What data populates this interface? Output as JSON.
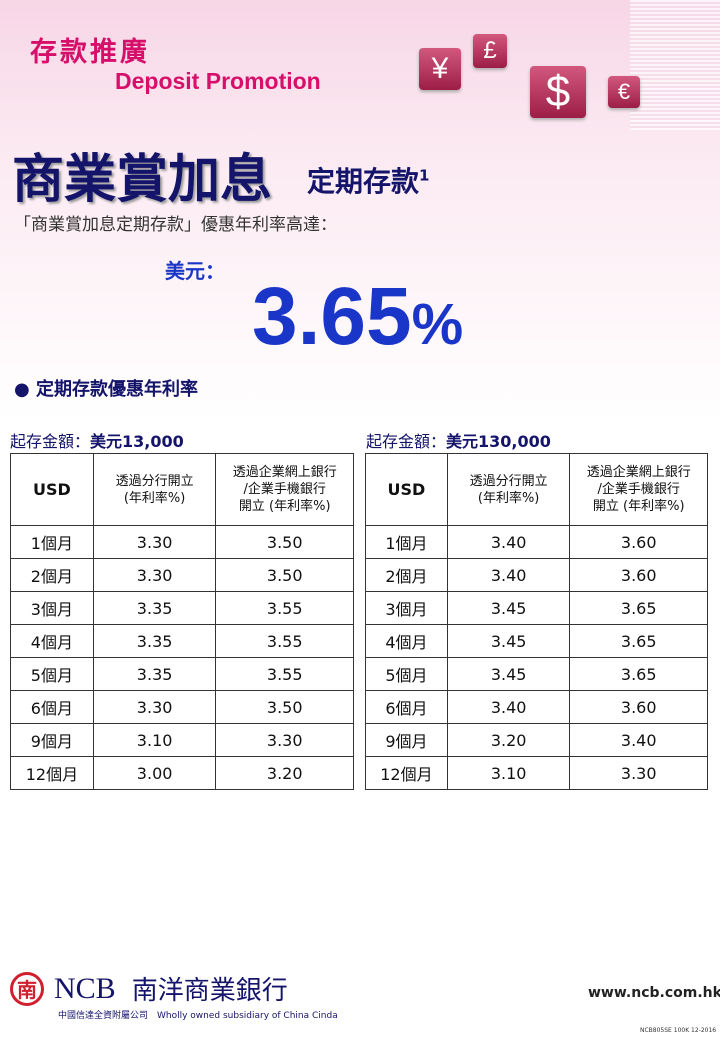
{
  "header": {
    "title_zh": "存款推廣",
    "title_en": "Deposit Promotion",
    "currency_icons": [
      "¥",
      "£",
      "$",
      "€"
    ]
  },
  "product": {
    "name": "商業賞加息",
    "suffix": "定期存款",
    "footnote": "1",
    "intro": "「商業賞加息定期存款」優惠年利率高達：",
    "currency_label": "美元：",
    "rate": "3.65",
    "rate_unit": "%"
  },
  "section_title": "● 定期存款優惠年利率",
  "tables": [
    {
      "min_label": "起存金額：",
      "min_amount": "美元13,000",
      "headers": [
        "USD",
        "透過分行開立\n(年利率%)",
        "透過企業網上銀行\n/企業手機銀行\n開立 (年利率%)"
      ],
      "rows": [
        [
          "1個月",
          "3.30",
          "3.50"
        ],
        [
          "2個月",
          "3.30",
          "3.50"
        ],
        [
          "3個月",
          "3.35",
          "3.55"
        ],
        [
          "4個月",
          "3.35",
          "3.55"
        ],
        [
          "5個月",
          "3.35",
          "3.55"
        ],
        [
          "6個月",
          "3.30",
          "3.50"
        ],
        [
          "9個月",
          "3.10",
          "3.30"
        ],
        [
          "12個月",
          "3.00",
          "3.20"
        ]
      ]
    },
    {
      "min_label": "起存金額：",
      "min_amount": "美元130,000",
      "headers": [
        "USD",
        "透過分行開立\n(年利率%)",
        "透過企業網上銀行\n/企業手機銀行\n開立 (年利率%)"
      ],
      "rows": [
        [
          "1個月",
          "3.40",
          "3.60"
        ],
        [
          "2個月",
          "3.40",
          "3.60"
        ],
        [
          "3個月",
          "3.45",
          "3.65"
        ],
        [
          "4個月",
          "3.45",
          "3.65"
        ],
        [
          "5個月",
          "3.45",
          "3.65"
        ],
        [
          "6個月",
          "3.40",
          "3.60"
        ],
        [
          "9個月",
          "3.20",
          "3.40"
        ],
        [
          "12個月",
          "3.10",
          "3.30"
        ]
      ]
    }
  ],
  "footer": {
    "seal": "南",
    "brand": "NCB",
    "brand_zh": "南洋商業銀行",
    "subsidiary": "中國信達全資附屬公司　Wholly owned subsidiary of China Cinda",
    "url": "www.ncb.com.hk",
    "code": "NCB805SE 100K 12-2016"
  },
  "colors": {
    "magenta": "#d6106a",
    "navy": "#14146a",
    "blue": "#1a36c8"
  }
}
